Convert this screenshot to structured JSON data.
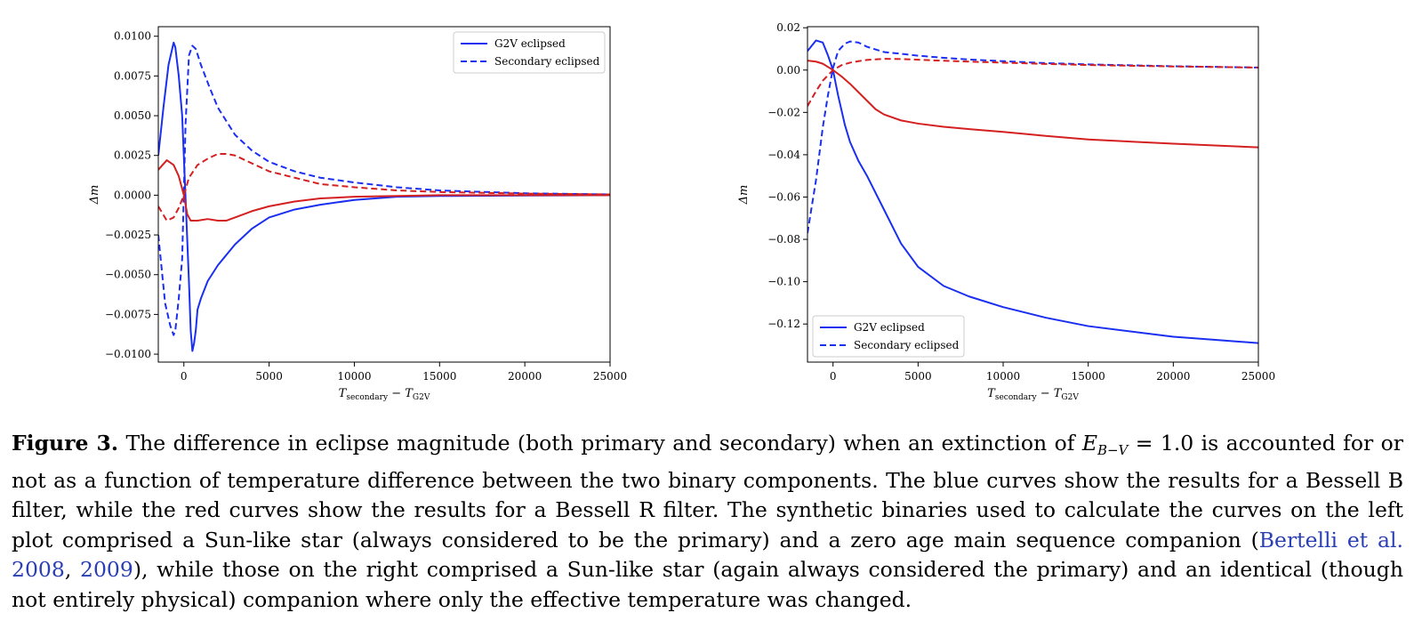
{
  "chart_data": [
    {
      "type": "line",
      "xlabel": "T_secondary − T_G2V",
      "xlabel_main": "T",
      "xlabel_sub1": "secondary",
      "xlabel_mid": " − T",
      "xlabel_sub2": "G2V",
      "ylabel": "Δm",
      "xlim": [
        -1500,
        25000
      ],
      "ylim": [
        -0.0105,
        0.0106
      ],
      "xticks": [
        0,
        5000,
        10000,
        15000,
        20000,
        25000
      ],
      "xtick_labels": [
        "0",
        "5000",
        "10000",
        "15000",
        "20000",
        "25000"
      ],
      "yticks": [
        0.01,
        0.0075,
        0.005,
        0.0025,
        0.0,
        -0.0025,
        -0.005,
        -0.0075,
        -0.01
      ],
      "ytick_labels": [
        "0.0100",
        "0.0075",
        "0.0050",
        "0.0025",
        "0.0000",
        "−0.0025",
        "−0.0050",
        "−0.0075",
        "−0.0100"
      ],
      "legend_position": "top-right",
      "legend": [
        "G2V eclipsed",
        "Secondary eclipsed"
      ],
      "series": [
        {
          "name": "G2V eclipsed",
          "color": "#1a2ff0",
          "dash": "solid",
          "x": [
            -1500,
            -1200,
            -900,
            -600,
            -500,
            -300,
            -100,
            100,
            300,
            400,
            500,
            600,
            700,
            800,
            1000,
            1400,
            2000,
            3000,
            4000,
            5000,
            6500,
            8000,
            10000,
            12500,
            15000,
            20000,
            25000
          ],
          "y": [
            0.0025,
            0.0055,
            0.0082,
            0.0096,
            0.0093,
            0.0075,
            0.005,
            -0.0002,
            -0.0055,
            -0.0085,
            -0.0098,
            -0.0093,
            -0.0085,
            -0.0072,
            -0.0065,
            -0.0054,
            -0.0044,
            -0.0031,
            -0.0021,
            -0.0014,
            -0.0009,
            -0.0006,
            -0.0003,
            -0.0001,
            -5e-05,
            -2e-05,
            0.0
          ]
        },
        {
          "name": "Secondary eclipsed",
          "color": "#1a2ff0",
          "dash": "dashed",
          "x": [
            -1500,
            -1100,
            -800,
            -600,
            -500,
            -300,
            -100,
            100,
            300,
            500,
            700,
            1000,
            1500,
            2000,
            3000,
            4000,
            5000,
            6500,
            8000,
            10000,
            12500,
            15000,
            20000,
            25000
          ],
          "y": [
            -0.0025,
            -0.0068,
            -0.0082,
            -0.0088,
            -0.0085,
            -0.0065,
            -0.004,
            0.0045,
            0.0088,
            0.0094,
            0.0092,
            0.0082,
            0.0068,
            0.0055,
            0.0038,
            0.0028,
            0.0021,
            0.0015,
            0.0011,
            0.0008,
            0.0005,
            0.0003,
            0.00012,
            5e-05
          ]
        },
        {
          "name": "",
          "color": "#d42020",
          "dash": "solid",
          "x": [
            -1500,
            -1000,
            -600,
            -300,
            0,
            200,
            400,
            800,
            1400,
            2000,
            2500,
            3000,
            4000,
            5000,
            6500,
            8000,
            10000,
            12500,
            15000,
            20000,
            25000
          ],
          "y": [
            0.0016,
            0.0022,
            0.0019,
            0.0012,
            0.0,
            -0.0012,
            -0.0016,
            -0.0016,
            -0.0015,
            -0.0016,
            -0.0016,
            -0.0014,
            -0.001,
            -0.0007,
            -0.0004,
            -0.0002,
            -0.0001,
            -5e-05,
            0.0,
            0.0,
            0.0
          ]
        },
        {
          "name": "",
          "color": "#d42020",
          "dash": "dashed",
          "x": [
            -1500,
            -1000,
            -600,
            -300,
            0,
            300,
            800,
            1400,
            2000,
            2500,
            3000,
            4000,
            5000,
            6500,
            8000,
            10000,
            12500,
            15000,
            20000,
            25000
          ],
          "y": [
            -0.0007,
            -0.0016,
            -0.0014,
            -0.0008,
            0.0,
            0.0011,
            0.0019,
            0.0023,
            0.0026,
            0.0026,
            0.0025,
            0.002,
            0.0015,
            0.0011,
            0.0007,
            0.0005,
            0.0003,
            0.0002,
            0.0001,
            5e-05
          ]
        }
      ]
    },
    {
      "type": "line",
      "xlabel": "T_secondary − T_G2V",
      "xlabel_main": "T",
      "xlabel_sub1": "secondary",
      "xlabel_mid": " − T",
      "xlabel_sub2": "G2V",
      "ylabel": "Δm",
      "xlim": [
        -1500,
        25000
      ],
      "ylim": [
        -0.138,
        0.0205
      ],
      "xticks": [
        0,
        5000,
        10000,
        15000,
        20000,
        25000
      ],
      "xtick_labels": [
        "0",
        "5000",
        "10000",
        "15000",
        "20000",
        "25000"
      ],
      "yticks": [
        0.02,
        0.0,
        -0.02,
        -0.04,
        -0.06,
        -0.08,
        -0.1,
        -0.12
      ],
      "ytick_labels": [
        "0.02",
        "0.00",
        "−0.02",
        "−0.04",
        "−0.06",
        "−0.08",
        "−0.10",
        "−0.12"
      ],
      "legend_position": "bottom-left",
      "legend": [
        "G2V eclipsed",
        "Secondary eclipsed"
      ],
      "series": [
        {
          "name": "G2V eclipsed",
          "color": "#1a2ff0",
          "dash": "solid",
          "x": [
            -1500,
            -1000,
            -600,
            -300,
            0,
            300,
            700,
            1000,
            1500,
            2000,
            3000,
            4000,
            5000,
            6500,
            8000,
            10000,
            12500,
            15000,
            20000,
            25000
          ],
          "y": [
            0.009,
            0.014,
            0.013,
            0.007,
            0.0,
            -0.012,
            -0.026,
            -0.034,
            -0.043,
            -0.05,
            -0.066,
            -0.082,
            -0.093,
            -0.102,
            -0.107,
            -0.112,
            -0.117,
            -0.121,
            -0.126,
            -0.129
          ]
        },
        {
          "name": "Secondary eclipsed",
          "color": "#1a2ff0",
          "dash": "dashed",
          "x": [
            -1500,
            -1000,
            -600,
            -300,
            0,
            300,
            700,
            1000,
            1500,
            2000,
            3000,
            4000,
            5000,
            6500,
            8000,
            10000,
            12500,
            15000,
            20000,
            25000
          ],
          "y": [
            -0.077,
            -0.052,
            -0.027,
            -0.012,
            0.001,
            0.009,
            0.0125,
            0.0135,
            0.013,
            0.011,
            0.0085,
            0.0077,
            0.0068,
            0.0058,
            0.005,
            0.0042,
            0.0033,
            0.0027,
            0.0018,
            0.0012
          ]
        },
        {
          "name": "",
          "color": "#d42020",
          "dash": "solid",
          "x": [
            -1500,
            -1000,
            -600,
            -300,
            0,
            500,
            1000,
            1500,
            2000,
            2500,
            3000,
            4000,
            5000,
            6500,
            8000,
            10000,
            12500,
            15000,
            20000,
            25000
          ],
          "y": [
            0.0045,
            0.004,
            0.003,
            0.0015,
            0.0,
            -0.003,
            -0.0065,
            -0.0105,
            -0.0145,
            -0.0185,
            -0.021,
            -0.0238,
            -0.0253,
            -0.0268,
            -0.0279,
            -0.0292,
            -0.0311,
            -0.0328,
            -0.0348,
            -0.0365
          ]
        },
        {
          "name": "",
          "color": "#d42020",
          "dash": "dashed",
          "x": [
            -1500,
            -1000,
            -600,
            -300,
            0,
            500,
            1000,
            1500,
            2000,
            3000,
            4000,
            5000,
            6500,
            8000,
            10000,
            12500,
            15000,
            20000,
            25000
          ],
          "y": [
            -0.017,
            -0.01,
            -0.005,
            -0.0025,
            0.0,
            0.0023,
            0.0035,
            0.0042,
            0.0048,
            0.0053,
            0.0052,
            0.0049,
            0.0044,
            0.004,
            0.0035,
            0.0029,
            0.0024,
            0.0017,
            0.0012
          ]
        }
      ]
    }
  ],
  "caption": {
    "label": "Figure 3.",
    "p1": " The difference in eclipse magnitude (both primary and secondary) when an extinction of ",
    "math_E": "E",
    "math_sub": "B−V",
    "math_eq": " = 1.0",
    "p2": " is accounted for or not as a function of temperature difference between the two binary components. The blue curves show the results for a Bessell B filter, while the red curves show the results for a Bessell R filter. The synthetic binaries used to calculate the curves on the left plot comprised a Sun-like star (always considered to be the primary) and a zero age main sequence companion (",
    "cite1": "Bertelli et al. 2008",
    "sep": ", ",
    "cite2": "2009",
    "p3": "), while those on the right comprised a Sun-like star (again always considered the primary) and an identical (though not entirely physical) companion where only the effective temperature was changed."
  }
}
